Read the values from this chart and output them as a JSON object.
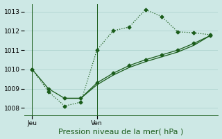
{
  "background_color": "#cde8e5",
  "plot_bg_color": "#cde8e5",
  "grid_color": "#b0d4d0",
  "line_color": "#1a5c1a",
  "ylim": [
    1007.6,
    1013.4
  ],
  "yticks": [
    1008,
    1009,
    1010,
    1011,
    1012,
    1013
  ],
  "xlabel": "Pression niveau de la mer( hPa )",
  "xlabel_fontsize": 8,
  "tick_fontsize": 6.5,
  "line1_x": [
    0,
    1,
    2,
    3,
    4,
    5,
    6,
    7,
    8,
    9,
    10,
    11
  ],
  "line1_y": [
    1010.0,
    1008.85,
    1008.1,
    1008.3,
    1011.0,
    1012.0,
    1012.2,
    1013.1,
    1012.75,
    1011.95,
    1011.9,
    1011.8
  ],
  "line2_x": [
    0,
    1,
    2,
    3,
    4,
    5,
    6,
    7,
    8,
    9,
    10,
    11
  ],
  "line2_y": [
    1010.0,
    1009.0,
    1008.5,
    1008.5,
    1009.3,
    1009.8,
    1010.2,
    1010.5,
    1010.75,
    1011.0,
    1011.35,
    1011.75
  ],
  "line3_x": [
    2,
    3,
    4,
    5,
    6,
    7,
    8,
    9,
    10,
    11
  ],
  "line3_y": [
    1008.5,
    1008.5,
    1009.2,
    1009.7,
    1010.1,
    1010.4,
    1010.65,
    1010.9,
    1011.25,
    1011.75
  ],
  "vline1_x": 0,
  "vline2_x": 4,
  "label1_text": "Jeu",
  "label2_text": "Ven",
  "xlim": [
    -0.5,
    11.5
  ],
  "figwidth": 3.2,
  "figheight": 2.0,
  "dpi": 100
}
